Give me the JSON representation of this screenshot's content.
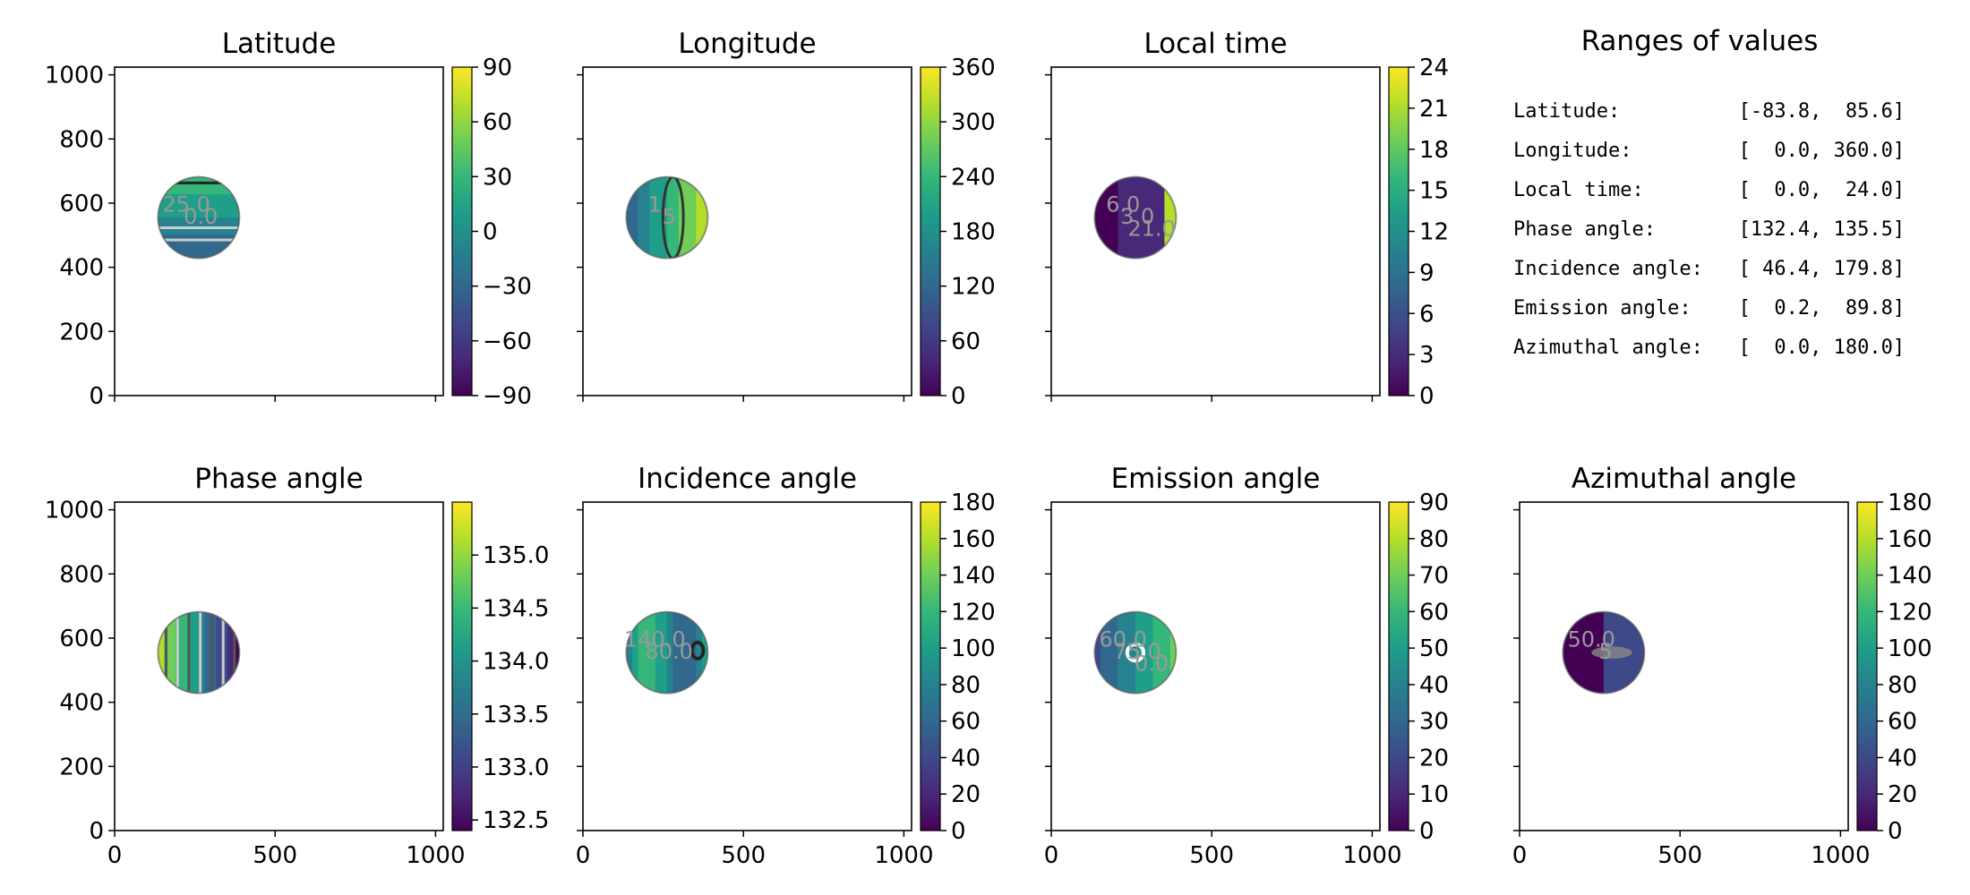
{
  "chart_data": {
    "type": "heatmap",
    "panels": [
      {
        "id": "latitude",
        "title": "Latitude",
        "cbar_ticks": [
          "90",
          "60",
          "30",
          "0",
          "−30",
          "−60",
          "−90"
        ],
        "vmin": -90,
        "vmax": 90,
        "contour_labels": [
          "25.0",
          "0.0"
        ]
      },
      {
        "id": "longitude",
        "title": "Longitude",
        "cbar_ticks": [
          "360",
          "300",
          "240",
          "180",
          "120",
          "60",
          "0"
        ],
        "vmin": 0,
        "vmax": 360,
        "contour_labels": [
          "1",
          "5"
        ]
      },
      {
        "id": "local_time",
        "title": "Local time",
        "cbar_ticks": [
          "24",
          "21",
          "18",
          "15",
          "12",
          "9",
          "6",
          "3",
          "0"
        ],
        "vmin": 0,
        "vmax": 24,
        "contour_labels": [
          "6.0",
          "3.0",
          "21.0"
        ]
      },
      {
        "id": "phase_angle",
        "title": "Phase angle",
        "cbar_ticks": [
          "135.0",
          "134.5",
          "134.0",
          "133.5",
          "133.0",
          "132.5"
        ],
        "vmin": 132.4,
        "vmax": 135.5,
        "contour_labels": []
      },
      {
        "id": "incidence_angle",
        "title": "Incidence angle",
        "cbar_ticks": [
          "180",
          "160",
          "140",
          "120",
          "100",
          "80",
          "60",
          "40",
          "20",
          "0"
        ],
        "vmin": 0,
        "vmax": 180,
        "contour_labels": [
          "140.0",
          "80.0"
        ]
      },
      {
        "id": "emission_angle",
        "title": "Emission angle",
        "cbar_ticks": [
          "90",
          "80",
          "70",
          "60",
          "50",
          "40",
          "30",
          "20",
          "10",
          "0"
        ],
        "vmin": 0,
        "vmax": 90,
        "contour_labels": [
          "60.0",
          "75.0",
          "0.0"
        ]
      },
      {
        "id": "azimuthal_angle",
        "title": "Azimuthal angle",
        "cbar_ticks": [
          "180",
          "160",
          "140",
          "120",
          "100",
          "80",
          "60",
          "40",
          "20",
          "0"
        ],
        "vmin": 0,
        "vmax": 180,
        "contour_labels": [
          "50.0",
          "5"
        ]
      }
    ],
    "x_ticks": [
      "0",
      "500",
      "1000"
    ],
    "y_ticks": [
      "1000",
      "800",
      "600",
      "400",
      "200",
      "0"
    ],
    "xlim": [
      0,
      1024
    ],
    "ylim": [
      0,
      1024
    ],
    "colormap": "viridis",
    "colors": [
      "#440154",
      "#482878",
      "#3e4989",
      "#31688e",
      "#26828e",
      "#1f9e89",
      "#35b779",
      "#6ece58",
      "#b5de2b",
      "#fde725"
    ],
    "ranges_title": "Ranges of values",
    "ranges": [
      "Latitude:          [-83.8,  85.6]",
      "Longitude:         [  0.0, 360.0]",
      "Local time:        [  0.0,  24.0]",
      "Phase angle:       [132.4, 135.5]",
      "Incidence angle:   [ 46.4, 179.8]",
      "Emission angle:    [  0.2,  89.8]",
      "Azimuthal angle:   [  0.0, 180.0]"
    ]
  }
}
